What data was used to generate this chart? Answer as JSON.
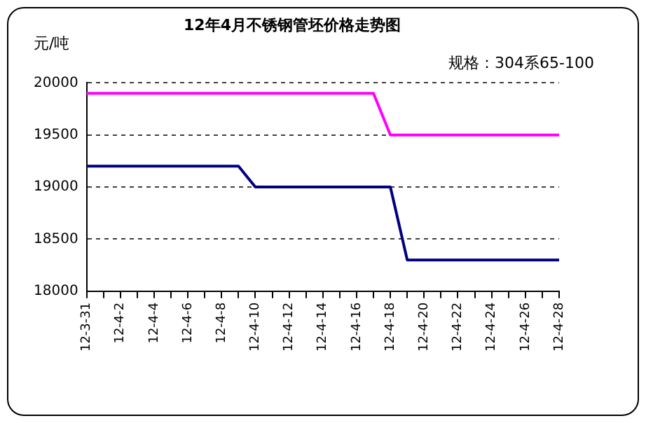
{
  "chart_data": {
    "type": "line",
    "title": "12年4月不锈钢管坯价格走势图",
    "ylabel": "元/吨",
    "annotations": [
      "规格：304系65-100"
    ],
    "categories": [
      "12-3-31",
      null,
      "12-4-2",
      null,
      "12-4-4",
      null,
      "12-4-6",
      null,
      "12-4-8",
      null,
      "12-4-10",
      null,
      "12-4-12",
      null,
      "12-4-14",
      null,
      "12-4-16",
      null,
      "12-4-18",
      null,
      "12-4-20",
      null,
      "12-4-22",
      null,
      "12-4-24",
      null,
      "12-4-26",
      null,
      "12-4-28"
    ],
    "series": [
      {
        "color": "#000080",
        "values": [
          19200,
          19200,
          19200,
          19200,
          19200,
          19200,
          19200,
          19200,
          19200,
          19200,
          19000,
          19000,
          19000,
          19000,
          19000,
          19000,
          19000,
          19000,
          19000,
          18300,
          18300,
          18300,
          18300,
          18300,
          18300,
          18300,
          18300,
          18300,
          18300
        ]
      },
      {
        "color": "#ff00ff",
        "values": [
          19900,
          19900,
          19900,
          19900,
          19900,
          19900,
          19900,
          19900,
          19900,
          19900,
          19900,
          19900,
          19900,
          19900,
          19900,
          19900,
          19900,
          19900,
          19500,
          19500,
          19500,
          19500,
          19500,
          19500,
          19500,
          19500,
          19500,
          19500,
          19500
        ]
      }
    ],
    "ylim": [
      18000,
      20000
    ],
    "yticks": [
      18000,
      18500,
      19000,
      19500,
      20000
    ],
    "grid": "y",
    "legend": false,
    "marker": "none",
    "line_style": "solid"
  }
}
